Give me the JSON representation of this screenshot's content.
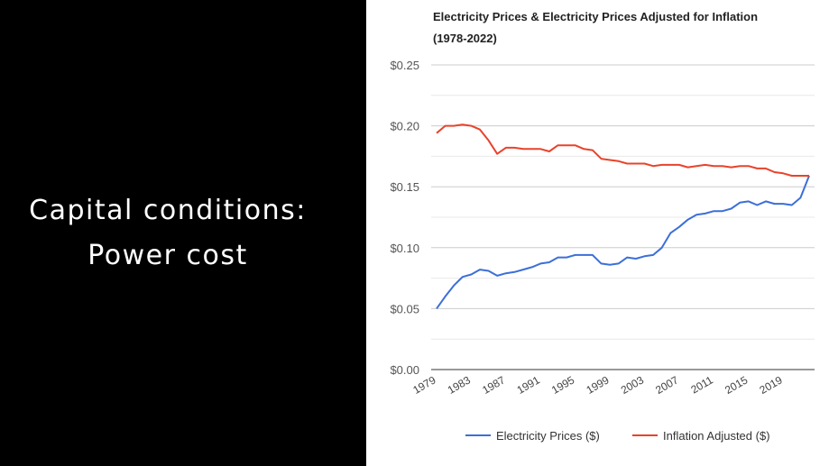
{
  "slide": {
    "title_line1": "Capital conditions:",
    "title_line2": "Power cost"
  },
  "chart_data": {
    "type": "line",
    "title": "Electricity Prices & Electricity Prices Adjusted for Inflation",
    "subtitle": "(1978-2022)",
    "xlabel": "",
    "ylabel": "",
    "ylim": [
      0,
      0.25
    ],
    "yticks": [
      0,
      0.05,
      0.1,
      0.15,
      0.2,
      0.25
    ],
    "ytick_labels": [
      "$0.00",
      "$0.05",
      "$0.10",
      "$0.15",
      "$0.20",
      "$0.25"
    ],
    "xtick_labels": [
      "1979",
      "1983",
      "1987",
      "1991",
      "1995",
      "1999",
      "2003",
      "2007",
      "2011",
      "2015",
      "2019"
    ],
    "x": [
      1979,
      1980,
      1981,
      1982,
      1983,
      1984,
      1985,
      1986,
      1987,
      1988,
      1989,
      1990,
      1991,
      1992,
      1993,
      1994,
      1995,
      1996,
      1997,
      1998,
      1999,
      2000,
      2001,
      2002,
      2003,
      2004,
      2005,
      2006,
      2007,
      2008,
      2009,
      2010,
      2011,
      2012,
      2013,
      2014,
      2015,
      2016,
      2017,
      2018,
      2019,
      2020,
      2021,
      2022
    ],
    "grid": true,
    "legend_position": "bottom",
    "series": [
      {
        "name": "Electricity Prices ($)",
        "color": "#3c6fd8",
        "values": [
          0.05,
          0.06,
          0.069,
          0.076,
          0.078,
          0.082,
          0.081,
          0.077,
          0.079,
          0.08,
          0.082,
          0.084,
          0.087,
          0.088,
          0.092,
          0.092,
          0.094,
          0.094,
          0.094,
          0.087,
          0.086,
          0.087,
          0.092,
          0.091,
          0.093,
          0.094,
          0.1,
          0.112,
          0.117,
          0.123,
          0.127,
          0.128,
          0.13,
          0.13,
          0.132,
          0.137,
          0.138,
          0.135,
          0.138,
          0.136,
          0.136,
          0.135,
          0.141,
          0.159
        ]
      },
      {
        "name": "Inflation Adjusted ($)",
        "color": "#e8432b",
        "values": [
          0.194,
          0.2,
          0.2,
          0.201,
          0.2,
          0.197,
          0.188,
          0.177,
          0.182,
          0.182,
          0.181,
          0.181,
          0.181,
          0.179,
          0.184,
          0.184,
          0.184,
          0.181,
          0.18,
          0.173,
          0.172,
          0.171,
          0.169,
          0.169,
          0.169,
          0.167,
          0.168,
          0.168,
          0.168,
          0.166,
          0.167,
          0.168,
          0.167,
          0.167,
          0.166,
          0.167,
          0.167,
          0.165,
          0.165,
          0.162,
          0.161,
          0.159,
          0.159,
          0.159
        ]
      }
    ]
  }
}
